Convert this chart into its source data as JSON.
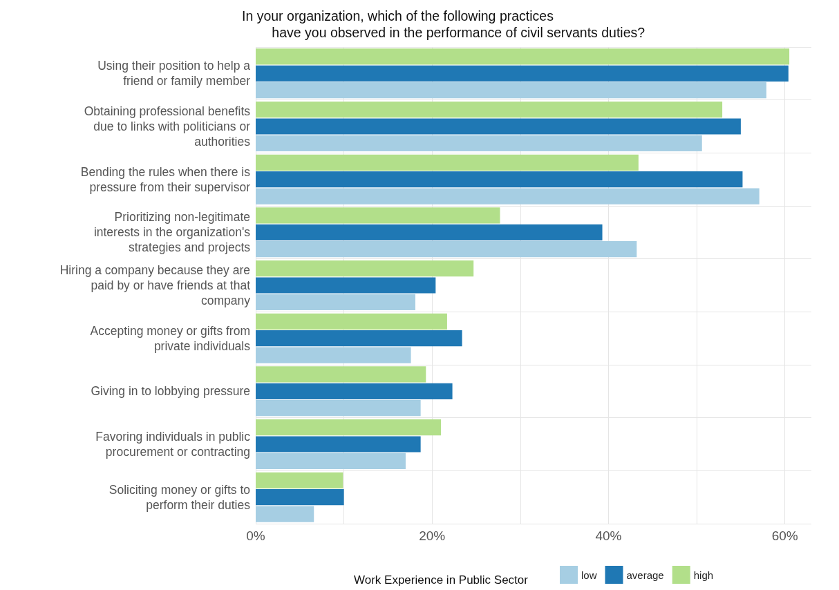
{
  "chart_data": {
    "type": "bar",
    "orientation": "horizontal",
    "title": "In your organization, which of the following practices\n        have you observed in the performance of civil servants duties?",
    "categories": [
      "Using their position to help a\nfriend or family member",
      "Obtaining professional benefits\ndue to links with politicians or\nauthorities",
      "Bending the rules when there is\npressure from their supervisor",
      "Prioritizing non-legitimate\ninterests in the organization's\nstrategies and projects",
      "Hiring a company because they are\npaid by or have friends at that\ncompany",
      "Accepting money or gifts from\nprivate individuals",
      "Giving in to lobbying pressure",
      "Favoring individuals in public\nprocurement or contracting",
      "Soliciting money or gifts to\nperform their duties"
    ],
    "series": [
      {
        "name": "low",
        "color": "#a6cee3",
        "values": [
          57.9,
          50.6,
          57.1,
          43.2,
          18.1,
          17.6,
          18.7,
          17.0,
          6.6
        ]
      },
      {
        "name": "average",
        "color": "#1f78b4",
        "values": [
          60.4,
          55.0,
          55.2,
          39.3,
          20.4,
          23.4,
          22.3,
          18.7,
          10.0
        ]
      },
      {
        "name": "high",
        "color": "#b2df8a",
        "values": [
          60.5,
          52.9,
          43.4,
          27.7,
          24.7,
          21.7,
          19.3,
          21.0,
          9.9
        ]
      }
    ],
    "xlim": [
      0,
      63
    ],
    "xticks": [
      {
        "value": 0,
        "label": "0%"
      },
      {
        "value": 10,
        "label": null
      },
      {
        "value": 20,
        "label": "20%"
      },
      {
        "value": 30,
        "label": null
      },
      {
        "value": 40,
        "label": "40%"
      },
      {
        "value": 50,
        "label": null
      },
      {
        "value": 60,
        "label": "60%"
      }
    ],
    "grid": true,
    "legend": "bottom",
    "legend_title": "Work Experience in Public Sector"
  }
}
